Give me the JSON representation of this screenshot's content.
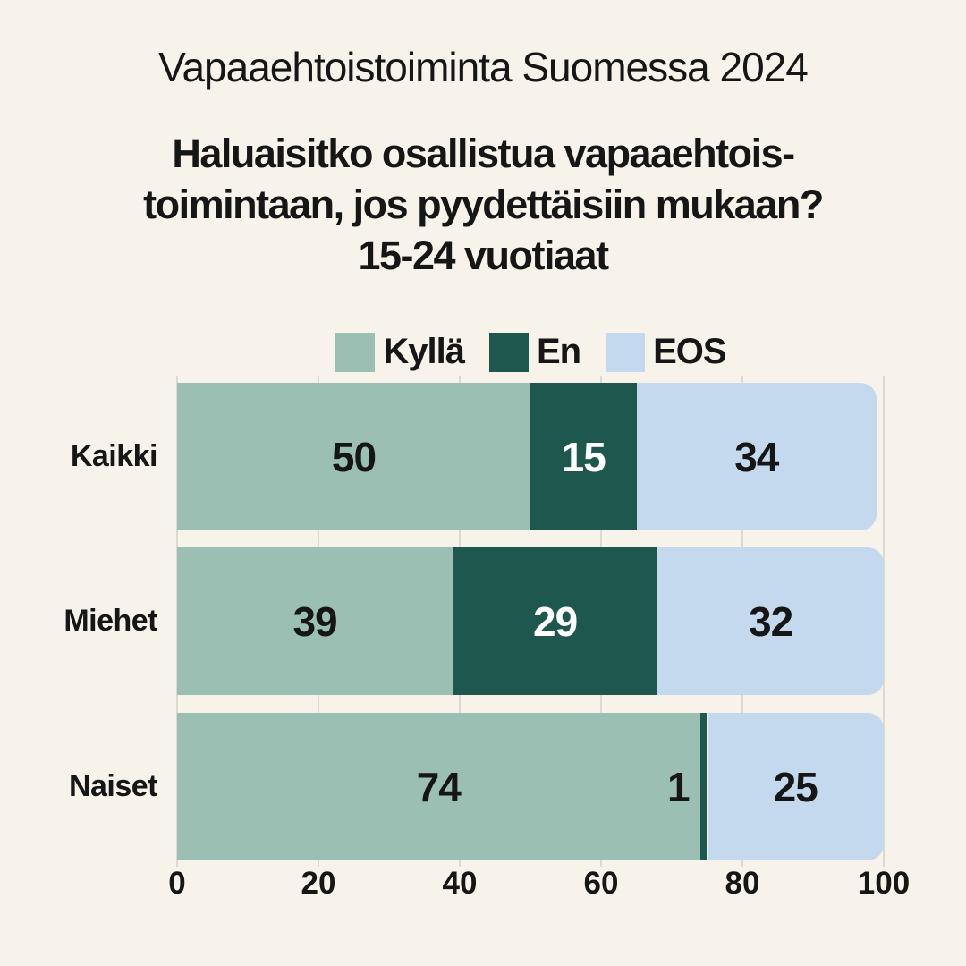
{
  "page": {
    "background_color": "#f7f2ea",
    "text_color": "#161616"
  },
  "header": {
    "title": "Vapaaehtoistoiminta Suomessa 2024",
    "question_lines": [
      "Haluaisitko osallistua vapaaehtois-",
      "toimintaan, jos pyydettäisiin mukaan?",
      "15-24 vuotiaat"
    ]
  },
  "chart_data": {
    "type": "bar",
    "orientation": "horizontal",
    "stacked": true,
    "title": "Haluaisitko osallistua vapaaehtoistoimintaan, jos pyydettäisiin mukaan? 15-24 vuotiaat",
    "categories": [
      "Kaikki",
      "Miehet",
      "Naiset"
    ],
    "series": [
      {
        "name": "Kyllä",
        "color": "#9bbfb2",
        "label_color": "#161616",
        "values": [
          50,
          39,
          74
        ]
      },
      {
        "name": "En",
        "color": "#1d574e",
        "label_color": "#ffffff",
        "values": [
          15,
          29,
          1
        ]
      },
      {
        "name": "EOS",
        "color": "#c4d8ee",
        "label_color": "#161616",
        "values": [
          34,
          32,
          25
        ]
      }
    ],
    "xlim": [
      0,
      100
    ],
    "xticks": [
      0,
      20,
      40,
      60,
      80,
      100
    ],
    "grid": true,
    "gridline_color": "#dcd8d2",
    "legend_position": "top"
  }
}
